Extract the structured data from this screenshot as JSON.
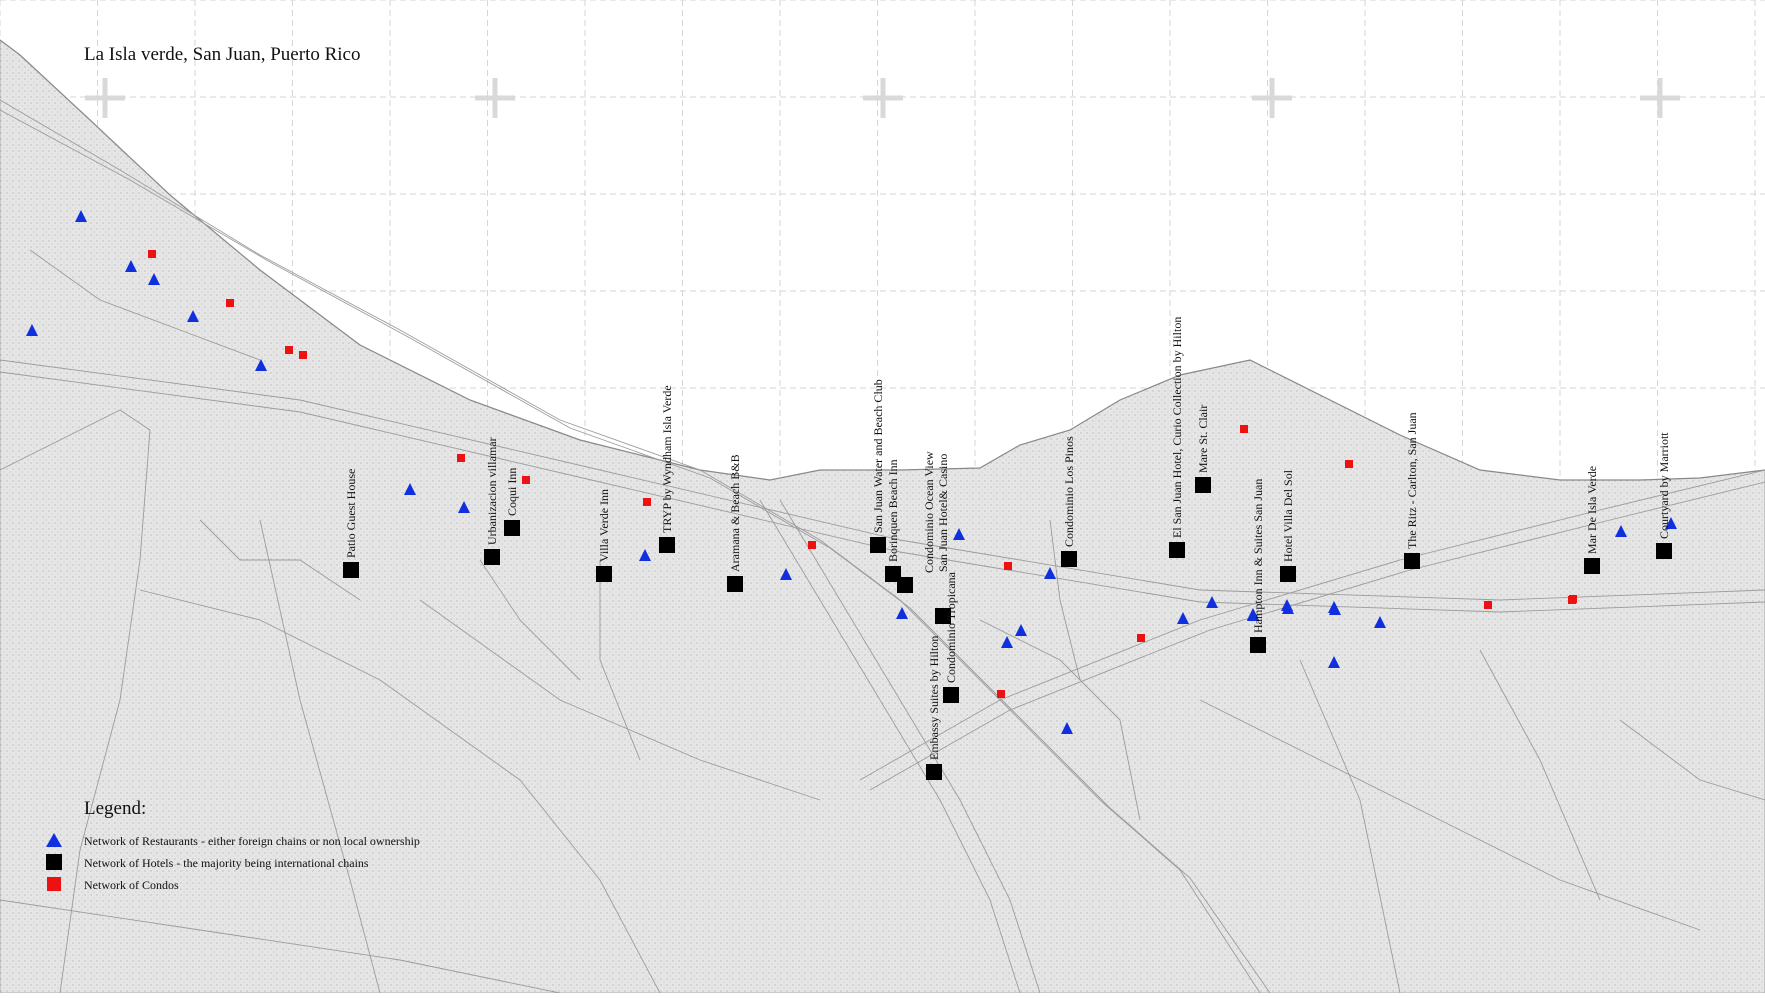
{
  "title": "La Isla verde, San Juan, Puerto Rico",
  "legend": {
    "title": "Legend:",
    "items": [
      {
        "symbol": "blue-triangle",
        "color": "#1030e0",
        "label": "Network of Restaurants - either foreign chains or non local ownership"
      },
      {
        "symbol": "black-square",
        "color": "#000000",
        "label": "Network of Hotels -  the majority being international chains"
      },
      {
        "symbol": "red-square",
        "color": "#ee1111",
        "label": "Network of Condos"
      }
    ]
  },
  "colors": {
    "restaurant": "#1030e0",
    "hotel": "#000000",
    "condo": "#ee1111",
    "land": "#e4e4e4",
    "grid": "#d6d6d6"
  },
  "hotels": [
    {
      "name": "Patio Guest House"
    },
    {
      "name": "Urbanizacion villamar"
    },
    {
      "name": "Coqui Inn"
    },
    {
      "name": "Villa Verde Inn"
    },
    {
      "name": "TRYP by Wyndham Isla Verde"
    },
    {
      "name": "Aramana & Beach B&B"
    },
    {
      "name": "San Juan Water and Beach Club"
    },
    {
      "name": "Borinquen Beach Inn"
    },
    {
      "name": "Condominio Ocean View"
    },
    {
      "name": "San Juan Hotel& Casino"
    },
    {
      "name": "Condominio Tropicana"
    },
    {
      "name": "Embassy Suites by Hilton"
    },
    {
      "name": "Condominio Los Pinos"
    },
    {
      "name": "El San Juan Hotel, Curio Collection by Hilton"
    },
    {
      "name": "Mare St. Clair"
    },
    {
      "name": "Hampton Inn & Suites San Juan"
    },
    {
      "name": "Hotel Villa Del Sol"
    },
    {
      "name": "The Ritz - Carlton, San Juan"
    },
    {
      "name": "Mar De Isla Verde"
    },
    {
      "name": "Courtyard by Marriott"
    }
  ],
  "restaurant_count": 29,
  "condo_count": 16
}
